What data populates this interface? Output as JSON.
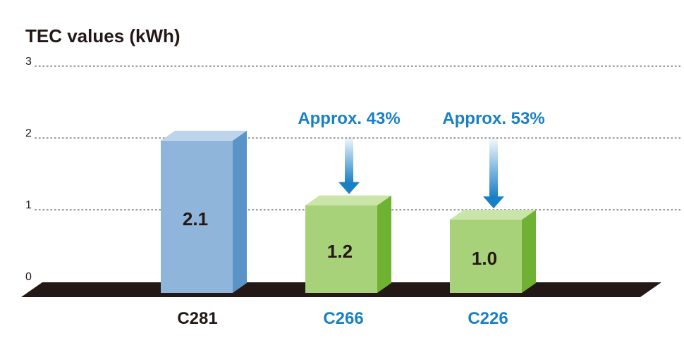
{
  "chart_data": {
    "type": "bar",
    "title": "TEC values (kWh)",
    "categories": [
      "C281",
      "C266",
      "C226"
    ],
    "values": [
      2.1,
      1.2,
      1.0
    ],
    "value_labels": [
      "2.1",
      "1.2",
      "1.0"
    ],
    "ylim": [
      0,
      3
    ],
    "yticks": [
      "0",
      "1",
      "2",
      "3"
    ],
    "grid": true,
    "annotations": [
      {
        "category": "C266",
        "text": "Approx. 43%"
      },
      {
        "category": "C226",
        "text": "Approx. 53%"
      }
    ]
  },
  "colors": {
    "title": "#231815",
    "floor": "#231815",
    "grid": "#777777",
    "baseline_front": "#8fb5db",
    "baseline_side": "#5a93c8",
    "baseline_top": "#bdd4eb",
    "reduced_front": "#a8d27a",
    "reduced_side": "#6fb233",
    "reduced_top": "#c9e5a8",
    "accent": "#1a80c6",
    "category_text": [
      "#231815",
      "#1a80c6",
      "#1a80c6"
    ]
  }
}
